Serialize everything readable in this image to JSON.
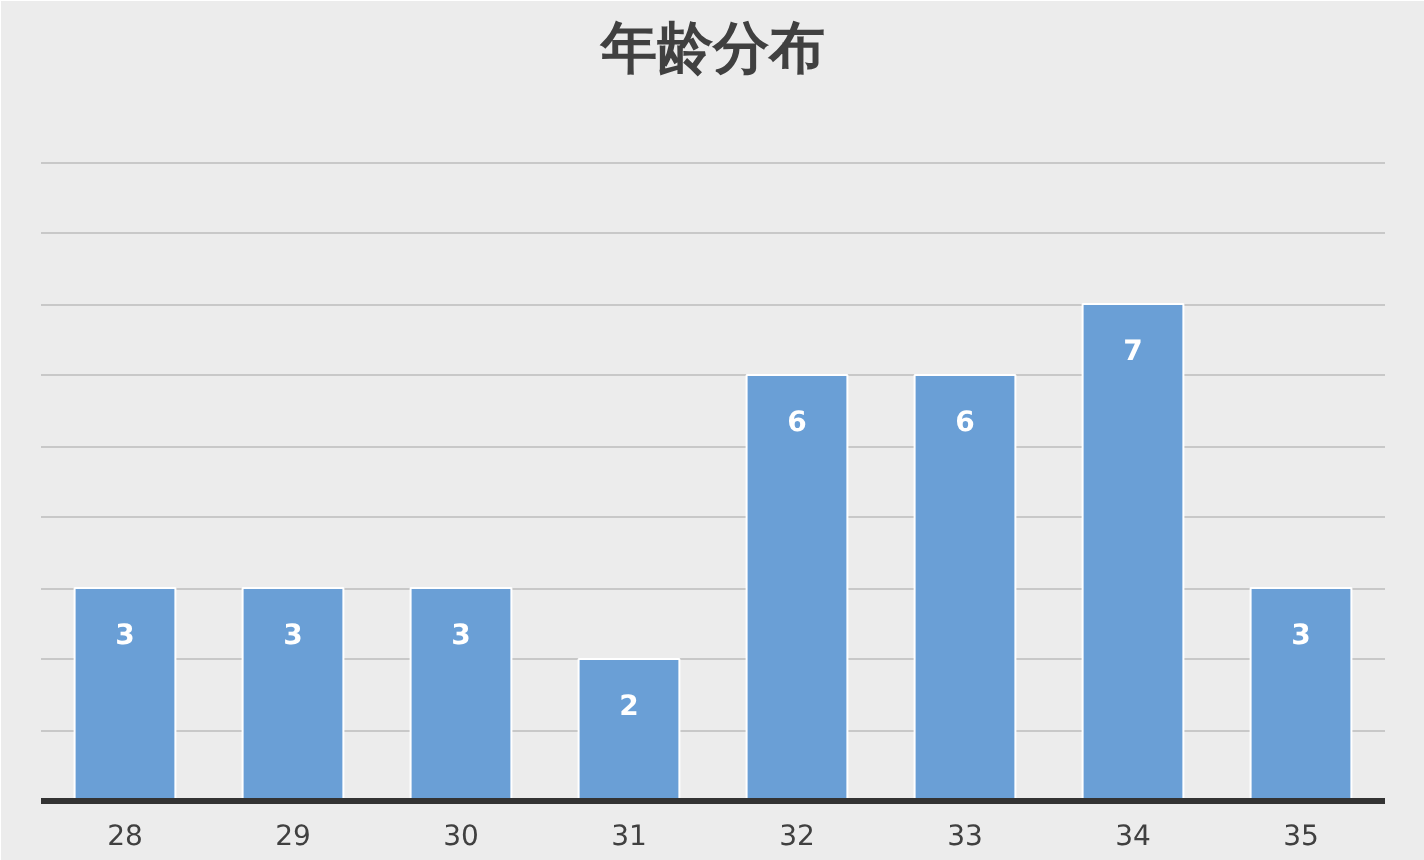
{
  "chart_data": {
    "type": "bar",
    "title": "年龄分布",
    "categories": [
      "28",
      "29",
      "30",
      "31",
      "32",
      "33",
      "34",
      "35"
    ],
    "values": [
      3,
      3,
      3,
      2,
      6,
      6,
      7,
      3
    ],
    "color": "#6a9fd6",
    "data_labels": true,
    "grid": "y",
    "ylim": [
      0,
      10
    ],
    "yticks": [
      {
        "value": 0,
        "label": null
      },
      {
        "value": 1,
        "label": null
      },
      {
        "value": 2,
        "label": null
      },
      {
        "value": 3,
        "label": null
      },
      {
        "value": 4,
        "label": null
      },
      {
        "value": 5,
        "label": null
      },
      {
        "value": 6,
        "label": null
      },
      {
        "value": 7,
        "label": null
      },
      {
        "value": 8,
        "label": null
      },
      {
        "value": 9,
        "label": null
      }
    ],
    "tick_labels": "x"
  }
}
